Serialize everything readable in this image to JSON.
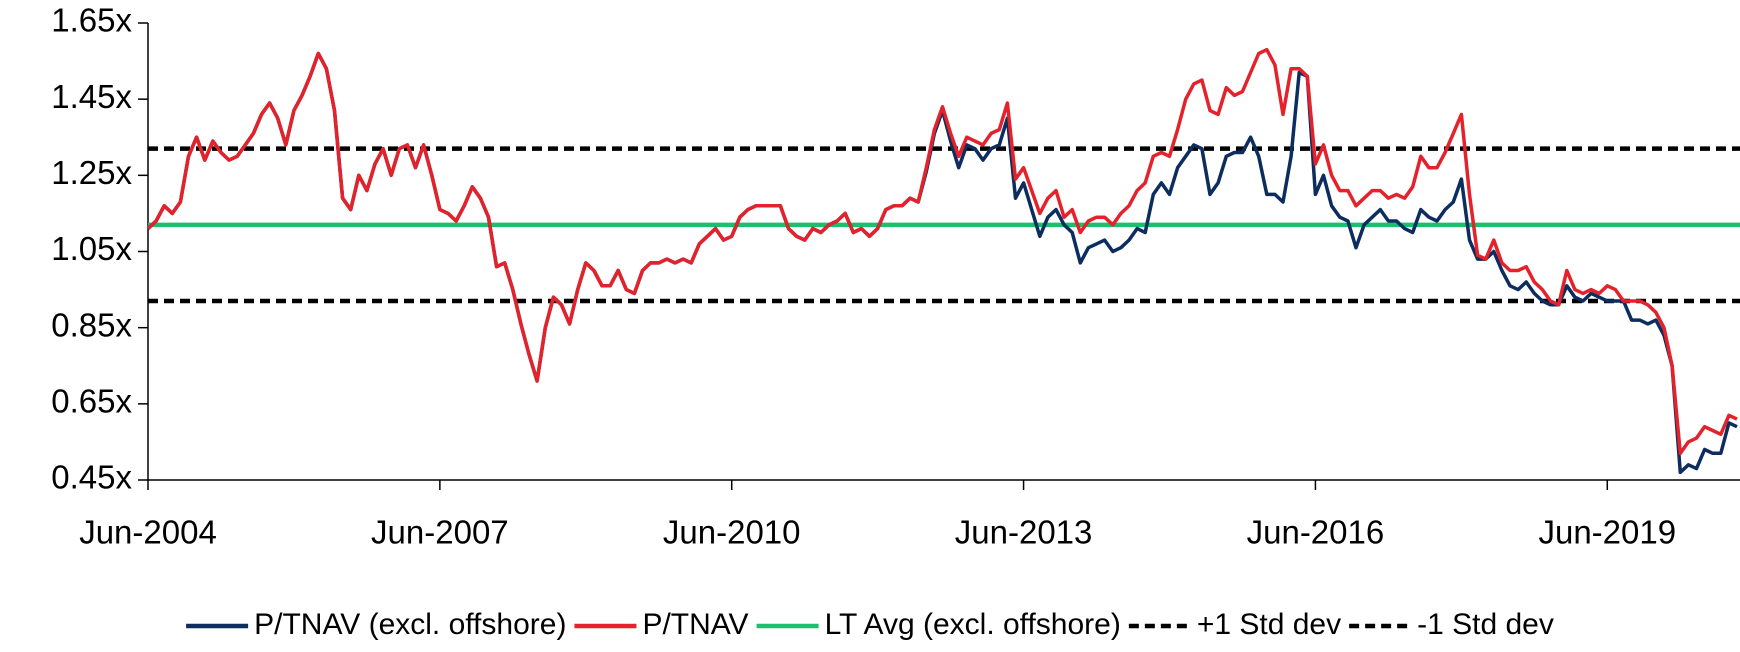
{
  "chart_data": {
    "type": "line",
    "categories": [
      "Jun-2004",
      null,
      null,
      null,
      null,
      null,
      null,
      null,
      null,
      null,
      null,
      null,
      null,
      null,
      null,
      null,
      null,
      null,
      null,
      null,
      null,
      null,
      null,
      null,
      null,
      null,
      null,
      null,
      null,
      null,
      null,
      null,
      null,
      null,
      null,
      null,
      "Jun-2007",
      null,
      null,
      null,
      null,
      null,
      null,
      null,
      null,
      null,
      null,
      null,
      null,
      null,
      null,
      null,
      null,
      null,
      null,
      null,
      null,
      null,
      null,
      null,
      null,
      null,
      null,
      null,
      null,
      null,
      null,
      null,
      null,
      null,
      null,
      null,
      "Jun-2010",
      null,
      null,
      null,
      null,
      null,
      null,
      null,
      null,
      null,
      null,
      null,
      null,
      null,
      null,
      null,
      null,
      null,
      null,
      null,
      null,
      null,
      null,
      null,
      null,
      null,
      null,
      null,
      null,
      null,
      null,
      null,
      null,
      null,
      null,
      null,
      "Jun-2013",
      null,
      null,
      null,
      null,
      null,
      null,
      null,
      null,
      null,
      null,
      null,
      null,
      null,
      null,
      null,
      null,
      null,
      null,
      null,
      null,
      null,
      null,
      null,
      null,
      null,
      null,
      null,
      null,
      null,
      null,
      null,
      null,
      null,
      null,
      null,
      "Jun-2016",
      null,
      null,
      null,
      null,
      null,
      null,
      null,
      null,
      null,
      null,
      null,
      null,
      null,
      null,
      null,
      null,
      null,
      null,
      null,
      null,
      null,
      null,
      null,
      null,
      null,
      null,
      null,
      null,
      null,
      null,
      null,
      null,
      null,
      null,
      null,
      "Jun-2019",
      null,
      null,
      null,
      null,
      null,
      null,
      null,
      null,
      null,
      null,
      null,
      null,
      null,
      null,
      null,
      null
    ],
    "series": [
      {
        "name": "P/TNAV (excl. offshore)",
        "color": "#0c2d5e",
        "values": [
          1.11,
          1.13,
          1.17,
          1.15,
          1.18,
          1.3,
          1.35,
          1.29,
          1.34,
          1.31,
          1.29,
          1.3,
          1.33,
          1.36,
          1.41,
          1.44,
          1.4,
          1.33,
          1.42,
          1.46,
          1.51,
          1.57,
          1.53,
          1.42,
          1.19,
          1.16,
          1.25,
          1.21,
          1.28,
          1.32,
          1.25,
          1.32,
          1.33,
          1.27,
          1.33,
          1.25,
          1.16,
          1.15,
          1.13,
          1.17,
          1.22,
          1.19,
          1.14,
          1.01,
          1.02,
          0.95,
          0.86,
          0.78,
          0.71,
          0.85,
          0.93,
          0.91,
          0.86,
          0.95,
          1.02,
          1.0,
          0.96,
          0.96,
          1.0,
          0.95,
          0.94,
          1.0,
          1.02,
          1.02,
          1.03,
          1.02,
          1.03,
          1.02,
          1.07,
          1.09,
          1.11,
          1.08,
          1.09,
          1.14,
          1.16,
          1.17,
          1.17,
          1.17,
          1.17,
          1.11,
          1.09,
          1.08,
          1.11,
          1.1,
          1.12,
          1.13,
          1.15,
          1.1,
          1.11,
          1.09,
          1.11,
          1.16,
          1.17,
          1.17,
          1.19,
          1.18,
          1.26,
          1.36,
          1.42,
          1.34,
          1.27,
          1.33,
          1.32,
          1.29,
          1.32,
          1.33,
          1.4,
          1.19,
          1.23,
          1.16,
          1.09,
          1.14,
          1.16,
          1.12,
          1.1,
          1.02,
          1.06,
          1.07,
          1.08,
          1.05,
          1.06,
          1.08,
          1.11,
          1.1,
          1.2,
          1.23,
          1.2,
          1.27,
          1.3,
          1.33,
          1.32,
          1.2,
          1.23,
          1.3,
          1.31,
          1.31,
          1.35,
          1.3,
          1.2,
          1.2,
          1.18,
          1.3,
          1.52,
          1.51,
          1.2,
          1.25,
          1.17,
          1.14,
          1.13,
          1.06,
          1.12,
          1.14,
          1.16,
          1.13,
          1.13,
          1.11,
          1.1,
          1.16,
          1.14,
          1.13,
          1.16,
          1.18,
          1.24,
          1.08,
          1.03,
          1.03,
          1.05,
          1.0,
          0.96,
          0.95,
          0.97,
          0.94,
          0.92,
          0.91,
          0.91,
          0.96,
          0.93,
          0.92,
          0.94,
          0.93,
          0.92,
          0.92,
          0.92,
          0.87,
          0.87,
          0.86,
          0.87,
          0.83,
          0.75,
          0.47,
          0.49,
          0.48,
          0.53,
          0.52,
          0.52,
          0.6,
          0.59
        ]
      },
      {
        "name": "P/TNAV",
        "color": "#e3222b",
        "values": [
          1.11,
          1.13,
          1.17,
          1.15,
          1.18,
          1.3,
          1.35,
          1.29,
          1.34,
          1.31,
          1.29,
          1.3,
          1.33,
          1.36,
          1.41,
          1.44,
          1.4,
          1.33,
          1.42,
          1.46,
          1.51,
          1.57,
          1.53,
          1.42,
          1.19,
          1.16,
          1.25,
          1.21,
          1.28,
          1.32,
          1.25,
          1.32,
          1.33,
          1.27,
          1.33,
          1.25,
          1.16,
          1.15,
          1.13,
          1.17,
          1.22,
          1.19,
          1.14,
          1.01,
          1.02,
          0.95,
          0.86,
          0.78,
          0.71,
          0.85,
          0.93,
          0.91,
          0.86,
          0.95,
          1.02,
          1.0,
          0.96,
          0.96,
          1.0,
          0.95,
          0.94,
          1.0,
          1.02,
          1.02,
          1.03,
          1.02,
          1.03,
          1.02,
          1.07,
          1.09,
          1.11,
          1.08,
          1.09,
          1.14,
          1.16,
          1.17,
          1.17,
          1.17,
          1.17,
          1.11,
          1.09,
          1.08,
          1.11,
          1.1,
          1.12,
          1.13,
          1.15,
          1.1,
          1.11,
          1.09,
          1.11,
          1.16,
          1.17,
          1.17,
          1.19,
          1.18,
          1.27,
          1.37,
          1.43,
          1.36,
          1.3,
          1.35,
          1.34,
          1.33,
          1.36,
          1.37,
          1.44,
          1.24,
          1.27,
          1.21,
          1.15,
          1.19,
          1.21,
          1.14,
          1.16,
          1.1,
          1.13,
          1.14,
          1.14,
          1.12,
          1.15,
          1.17,
          1.21,
          1.23,
          1.3,
          1.31,
          1.3,
          1.37,
          1.45,
          1.49,
          1.5,
          1.42,
          1.41,
          1.48,
          1.46,
          1.47,
          1.52,
          1.57,
          1.58,
          1.54,
          1.41,
          1.53,
          1.53,
          1.51,
          1.28,
          1.33,
          1.25,
          1.21,
          1.21,
          1.17,
          1.19,
          1.21,
          1.21,
          1.19,
          1.2,
          1.19,
          1.22,
          1.3,
          1.27,
          1.27,
          1.31,
          1.36,
          1.41,
          1.2,
          1.04,
          1.03,
          1.08,
          1.02,
          1.0,
          1.0,
          1.01,
          0.97,
          0.95,
          0.92,
          0.91,
          1.0,
          0.95,
          0.94,
          0.95,
          0.94,
          0.96,
          0.95,
          0.92,
          0.92,
          0.92,
          0.91,
          0.89,
          0.85,
          0.75,
          0.52,
          0.55,
          0.56,
          0.59,
          0.58,
          0.57,
          0.62,
          0.61
        ]
      }
    ],
    "reference_lines": [
      {
        "name": "LT Avg (excl. offshore)",
        "color": "#1dbf6e",
        "value": 1.12,
        "dashed": false
      },
      {
        "name": "+1 Std dev",
        "color": "#000000",
        "value": 1.32,
        "dashed": true
      },
      {
        "name": "-1 Std dev",
        "color": "#000000",
        "value": 0.92,
        "dashed": true
      }
    ],
    "ylim": [
      0.45,
      1.65
    ],
    "yticks": [
      {
        "value": 0.45,
        "label": "0.45x"
      },
      {
        "value": 0.65,
        "label": "0.65x"
      },
      {
        "value": 0.85,
        "label": "0.85x"
      },
      {
        "value": 1.05,
        "label": "1.05x"
      },
      {
        "value": 1.25,
        "label": "1.25x"
      },
      {
        "value": 1.45,
        "label": "1.45x"
      },
      {
        "value": 1.65,
        "label": "1.65x"
      }
    ],
    "grid": false,
    "legend": "bottom"
  }
}
